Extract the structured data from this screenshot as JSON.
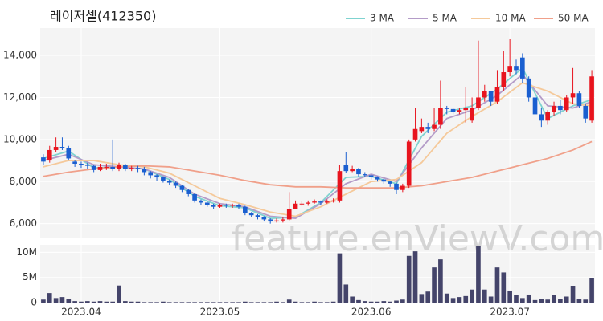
{
  "chart_data": {
    "type": "candlestick",
    "title": "레이저셀(412350)",
    "watermark": "feature.enViewV.com",
    "legend_position": "top-right",
    "grid": true,
    "xticks": [
      {
        "value": 6,
        "label": "2023.04"
      },
      {
        "value": 28,
        "label": "2023.05"
      },
      {
        "value": 52,
        "label": "2023.06"
      },
      {
        "value": 74,
        "label": "2023.07"
      }
    ],
    "price": {
      "ylim": [
        5300,
        15300
      ],
      "yticks": [
        {
          "value": 6000,
          "label": "6,000"
        },
        {
          "value": 8000,
          "label": "8,000"
        },
        {
          "value": 10000,
          "label": "10,000"
        },
        {
          "value": 12000,
          "label": "12,000"
        },
        {
          "value": 14000,
          "label": "14,000"
        }
      ],
      "up_color": "#e8141e",
      "down_color": "#1a5fd0",
      "open": [
        9150,
        9000,
        9500,
        9650,
        9600,
        8950,
        8850,
        8800,
        8750,
        8550,
        8700,
        8700,
        8600,
        8800,
        8600,
        8650,
        8600,
        8450,
        8300,
        8200,
        8050,
        7950,
        7800,
        7600,
        7400,
        7100,
        7000,
        6900,
        6800,
        6900,
        6850,
        6900,
        6800,
        6500,
        6400,
        6300,
        6200,
        6100,
        6150,
        6200,
        6700,
        6950,
        6950,
        7000,
        7050,
        7000,
        7050,
        7100,
        8800,
        8500,
        8600,
        8350,
        8300,
        8200,
        8100,
        8000,
        7900,
        7600,
        7800,
        10000,
        10400,
        10600,
        10500,
        10700,
        11500,
        11450,
        11300,
        11400,
        10900,
        11500,
        12000,
        12300,
        11800,
        12500,
        13200,
        13500,
        13900,
        12900,
        12000,
        11200,
        10900,
        11300,
        11600,
        11400,
        12000,
        12200,
        11600,
        10900
      ],
      "high": [
        9300,
        9700,
        10100,
        10100,
        9700,
        9000,
        8950,
        8900,
        8800,
        8850,
        8850,
        10000,
        8900,
        8850,
        8750,
        8750,
        8700,
        8500,
        8350,
        8250,
        8100,
        8000,
        7850,
        7650,
        7450,
        7150,
        7050,
        6950,
        6950,
        6950,
        6950,
        6950,
        6850,
        6550,
        6450,
        6350,
        6250,
        6250,
        6300,
        7500,
        7100,
        7050,
        7100,
        7150,
        7100,
        7150,
        7200,
        8800,
        9400,
        8750,
        8650,
        8450,
        8350,
        8250,
        8150,
        8050,
        7950,
        7900,
        10000,
        11500,
        11000,
        10800,
        11500,
        12800,
        11600,
        11500,
        11500,
        12500,
        12000,
        14700,
        12600,
        12300,
        13300,
        14200,
        14800,
        13800,
        14100,
        13000,
        12200,
        11500,
        11400,
        11800,
        11900,
        12100,
        13400,
        12300,
        11700,
        13300
      ],
      "low": [
        8800,
        8900,
        9400,
        9500,
        9000,
        8700,
        8650,
        8600,
        8450,
        8500,
        8550,
        8500,
        8500,
        8500,
        8500,
        8450,
        8300,
        8150,
        8050,
        7950,
        7850,
        7700,
        7500,
        7300,
        7000,
        6900,
        6800,
        6700,
        6750,
        6750,
        6750,
        6700,
        6400,
        6300,
        6200,
        6100,
        6000,
        6050,
        6050,
        6150,
        6800,
        6850,
        6850,
        6950,
        6900,
        6950,
        7000,
        7000,
        8400,
        8450,
        8250,
        8200,
        8100,
        8000,
        7900,
        7750,
        7400,
        7500,
        7700,
        9900,
        10300,
        10300,
        10400,
        10500,
        11200,
        11200,
        11200,
        10800,
        10800,
        11400,
        11800,
        11600,
        11700,
        12300,
        13000,
        13100,
        12700,
        11800,
        11000,
        10600,
        10700,
        11100,
        11200,
        11300,
        11700,
        11500,
        10800,
        10800
      ],
      "close": [
        8950,
        9500,
        9650,
        9600,
        9100,
        8850,
        8800,
        8750,
        8550,
        8700,
        8700,
        8600,
        8800,
        8600,
        8650,
        8600,
        8450,
        8300,
        8200,
        8050,
        7950,
        7800,
        7600,
        7400,
        7100,
        7000,
        6900,
        6800,
        6900,
        6850,
        6900,
        6800,
        6500,
        6400,
        6300,
        6200,
        6100,
        6150,
        6200,
        6700,
        6950,
        6950,
        7000,
        7050,
        7000,
        7050,
        7100,
        8500,
        8500,
        8600,
        8350,
        8300,
        8200,
        8100,
        8000,
        7900,
        7600,
        7800,
        9900,
        10500,
        10600,
        10500,
        10700,
        11500,
        11450,
        11300,
        11400,
        11500,
        11500,
        12000,
        12300,
        11800,
        12500,
        13200,
        13500,
        13300,
        12900,
        12000,
        11200,
        10900,
        11300,
        11600,
        11400,
        12000,
        12200,
        11600,
        11000,
        13000
      ]
    },
    "volume": {
      "ylim": [
        0,
        11500000
      ],
      "yticks": [
        0,
        {
          "value": 5000000,
          "label": "5M"
        },
        {
          "value": 10000000,
          "label": "10M"
        }
      ],
      "color": "#44446a",
      "values": [
        600000,
        1900000,
        900000,
        1100000,
        700000,
        300000,
        200000,
        300000,
        200000,
        300000,
        200000,
        200000,
        3400000,
        300000,
        200000,
        200000,
        100000,
        100000,
        100000,
        200000,
        100000,
        100000,
        100000,
        100000,
        100000,
        100000,
        100000,
        100000,
        100000,
        100000,
        100000,
        100000,
        200000,
        100000,
        100000,
        100000,
        100000,
        200000,
        100000,
        600000,
        200000,
        100000,
        100000,
        200000,
        100000,
        100000,
        200000,
        9800000,
        3600000,
        1200000,
        500000,
        300000,
        200000,
        200000,
        300000,
        200000,
        400000,
        600000,
        9300000,
        10200000,
        1700000,
        2200000,
        7000000,
        8600000,
        1800000,
        900000,
        1100000,
        1300000,
        2600000,
        11200000,
        2600000,
        1200000,
        7000000,
        6000000,
        2400000,
        1500000,
        900000,
        1600000,
        500000,
        700000,
        600000,
        1500000,
        700000,
        1200000,
        3200000,
        700000,
        600000,
        4900000
      ]
    },
    "ma": {
      "x": [
        0,
        4,
        8,
        12,
        16,
        20,
        24,
        28,
        32,
        36,
        40,
        44,
        48,
        52,
        56,
        60,
        64,
        68,
        72,
        76,
        80,
        84,
        87
      ],
      "series": [
        {
          "name": "3 MA",
          "color": "#7fd3d0",
          "values": [
            9100,
            9450,
            8650,
            8700,
            8600,
            8100,
            7300,
            6850,
            6750,
            6250,
            6300,
            7000,
            8200,
            8250,
            7900,
            10150,
            11300,
            11600,
            12400,
            13400,
            11000,
            11600,
            11900
          ]
        },
        {
          "name": "5 MA",
          "color": "#b49cc8",
          "values": [
            9000,
            9300,
            8800,
            8700,
            8600,
            8200,
            7400,
            6950,
            6800,
            6350,
            6250,
            6950,
            7900,
            8350,
            8000,
            9600,
            11000,
            11400,
            12100,
            13100,
            11600,
            11500,
            11800
          ]
        },
        {
          "name": "10 MA",
          "color": "#f5c99a",
          "values": [
            8700,
            9000,
            9000,
            8800,
            8700,
            8400,
            7800,
            7200,
            6900,
            6550,
            6350,
            6800,
            7400,
            8000,
            8100,
            8900,
            10300,
            11100,
            11800,
            12700,
            12300,
            11700,
            11600
          ]
        },
        {
          "name": "50 MA",
          "color": "#f0a08a",
          "values": [
            8250,
            8450,
            8600,
            8700,
            8750,
            8700,
            8500,
            8300,
            8050,
            7850,
            7750,
            7750,
            7700,
            7700,
            7700,
            7800,
            8000,
            8200,
            8500,
            8800,
            9100,
            9500,
            9900
          ]
        }
      ]
    }
  }
}
